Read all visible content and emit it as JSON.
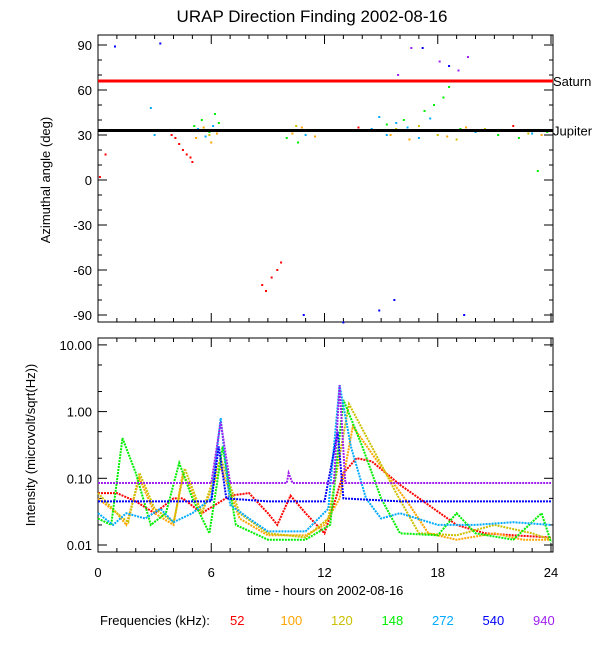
{
  "chart_data": [
    {
      "type": "scatter",
      "title": "URAP Direction Finding  2002-08-16",
      "ylabel": "Azimuthal angle (deg)",
      "xlim": [
        0,
        24
      ],
      "ylim": [
        -95,
        95
      ],
      "yticks": [
        90,
        60,
        30,
        0,
        -30,
        -60,
        -90
      ],
      "reference_lines": [
        {
          "label": "Saturn",
          "value": 66,
          "color": "#ff0000"
        },
        {
          "label": "Jupiter",
          "value": 33,
          "color": "#000000"
        }
      ],
      "series": [
        {
          "name": "52",
          "color": "#ff0000",
          "points": [
            [
              0.1,
              2
            ],
            [
              0.4,
              17
            ],
            [
              3.9,
              30
            ],
            [
              4.1,
              28
            ],
            [
              4.3,
              24
            ],
            [
              4.5,
              20
            ],
            [
              4.7,
              17
            ],
            [
              4.9,
              15
            ],
            [
              5.0,
              12
            ],
            [
              8.7,
              -70
            ],
            [
              8.9,
              -74
            ],
            [
              9.2,
              -65
            ],
            [
              9.5,
              -60
            ],
            [
              9.7,
              -55
            ],
            [
              13.8,
              35
            ],
            [
              22.0,
              36
            ]
          ]
        },
        {
          "name": "100",
          "color": "#ffa500",
          "points": [
            [
              5.2,
              28
            ],
            [
              5.6,
              35
            ],
            [
              6.0,
              25
            ],
            [
              6.3,
              31
            ],
            [
              10.3,
              31
            ],
            [
              10.8,
              35
            ],
            [
              11.5,
              29
            ],
            [
              15.5,
              30
            ],
            [
              16.5,
              27
            ],
            [
              17.5,
              33
            ],
            [
              18.5,
              29
            ],
            [
              19.5,
              35
            ],
            [
              22.5,
              33
            ],
            [
              23.5,
              30
            ]
          ]
        },
        {
          "name": "120",
          "color": "#ccc000",
          "points": [
            [
              5.4,
              33
            ],
            [
              5.9,
              30
            ],
            [
              10.5,
              36
            ],
            [
              11.2,
              33
            ],
            [
              15.8,
              34
            ],
            [
              17.0,
              36
            ],
            [
              18.0,
              30
            ],
            [
              19.0,
              27
            ],
            [
              20.5,
              34
            ],
            [
              22.8,
              31
            ]
          ]
        },
        {
          "name": "148",
          "color": "#00ee00",
          "points": [
            [
              5.1,
              36
            ],
            [
              5.5,
              40
            ],
            [
              5.9,
              32
            ],
            [
              6.2,
              44
            ],
            [
              6.4,
              38
            ],
            [
              10.0,
              28
            ],
            [
              10.6,
              25
            ],
            [
              11.6,
              33
            ],
            [
              15.3,
              37
            ],
            [
              16.2,
              40
            ],
            [
              17.3,
              46
            ],
            [
              17.8,
              50
            ],
            [
              18.3,
              55
            ],
            [
              18.6,
              62
            ],
            [
              19.2,
              34
            ],
            [
              21.2,
              30
            ],
            [
              22.3,
              28
            ],
            [
              23.3,
              6
            ],
            [
              23.8,
              32
            ]
          ]
        },
        {
          "name": "272",
          "color": "#00aaff",
          "points": [
            [
              3.0,
              30
            ],
            [
              2.8,
              48
            ],
            [
              5.3,
              34
            ],
            [
              5.7,
              29
            ],
            [
              6.1,
              36
            ],
            [
              10.2,
              33
            ],
            [
              11.0,
              30
            ],
            [
              14.5,
              34
            ],
            [
              14.9,
              42
            ],
            [
              15.3,
              30
            ],
            [
              15.8,
              38
            ],
            [
              16.4,
              35
            ],
            [
              17.0,
              28
            ],
            [
              17.6,
              41
            ],
            [
              18.2,
              33
            ],
            [
              20.0,
              32
            ],
            [
              23.0,
              31
            ]
          ]
        },
        {
          "name": "540",
          "color": "#0000ff",
          "points": [
            [
              0.9,
              89
            ],
            [
              3.3,
              91
            ],
            [
              10.9,
              -90
            ],
            [
              13.0,
              -95
            ],
            [
              14.9,
              -87
            ],
            [
              15.7,
              -80
            ],
            [
              19.4,
              -90
            ],
            [
              17.2,
              88
            ],
            [
              18.6,
              76
            ]
          ]
        },
        {
          "name": "940",
          "color": "#a020f0",
          "points": [
            [
              16.6,
              88
            ],
            [
              18.1,
              79
            ],
            [
              19.1,
              73
            ],
            [
              19.6,
              82
            ],
            [
              15.9,
              70
            ]
          ]
        }
      ]
    },
    {
      "type": "line",
      "xlabel": "time - hours on 2002-08-16",
      "ylabel": "Intensity (microvolt/sqrt(Hz))",
      "xlim": [
        0,
        24
      ],
      "ylim": [
        0.01,
        10
      ],
      "yscale": "log",
      "xticks": [
        0,
        6,
        12,
        18,
        24
      ],
      "yticks": [
        "10.00",
        "1.00",
        "0.10",
        "0.01"
      ],
      "series": [
        {
          "name": "52",
          "color": "#ff0000",
          "points": [
            [
              0,
              0.06
            ],
            [
              1,
              0.06
            ],
            [
              2,
              0.045
            ],
            [
              3,
              0.03
            ],
            [
              4,
              0.05
            ],
            [
              4.5,
              0.05
            ],
            [
              5.5,
              0.03
            ],
            [
              7,
              0.055
            ],
            [
              8,
              0.06
            ],
            [
              9,
              0.03
            ],
            [
              9.5,
              0.02
            ],
            [
              10.2,
              0.055
            ],
            [
              11,
              0.03
            ],
            [
              12,
              0.015
            ],
            [
              12.6,
              0.05
            ],
            [
              13,
              0.12
            ],
            [
              13.7,
              0.2
            ],
            [
              14.5,
              0.18
            ],
            [
              16,
              0.08
            ],
            [
              17.5,
              0.04
            ],
            [
              19,
              0.02
            ],
            [
              20.5,
              0.015
            ],
            [
              22,
              0.014
            ],
            [
              24,
              0.013
            ]
          ]
        },
        {
          "name": "100",
          "color": "#ffa500",
          "points": [
            [
              0,
              0.05
            ],
            [
              1,
              0.03
            ],
            [
              1.5,
              0.02
            ],
            [
              2.2,
              0.1
            ],
            [
              3,
              0.03
            ],
            [
              4,
              0.02
            ],
            [
              4.5,
              0.12
            ],
            [
              5.5,
              0.03
            ],
            [
              6.5,
              0.15
            ],
            [
              7.5,
              0.025
            ],
            [
              9,
              0.014
            ],
            [
              11,
              0.014
            ],
            [
              12,
              0.02
            ],
            [
              12.8,
              0.05
            ],
            [
              13.5,
              0.6
            ],
            [
              15,
              0.15
            ],
            [
              16.5,
              0.04
            ],
            [
              17.5,
              0.015
            ],
            [
              19,
              0.012
            ],
            [
              21,
              0.015
            ],
            [
              22.5,
              0.012
            ],
            [
              24,
              0.012
            ]
          ]
        },
        {
          "name": "120",
          "color": "#ccc000",
          "points": [
            [
              0,
              0.06
            ],
            [
              1,
              0.03
            ],
            [
              1.6,
              0.022
            ],
            [
              2.2,
              0.12
            ],
            [
              3,
              0.035
            ],
            [
              4,
              0.022
            ],
            [
              4.6,
              0.14
            ],
            [
              5.5,
              0.03
            ],
            [
              6.5,
              0.2
            ],
            [
              7.5,
              0.03
            ],
            [
              9,
              0.015
            ],
            [
              11,
              0.013
            ],
            [
              12.2,
              0.025
            ],
            [
              13.3,
              1.3
            ],
            [
              14.5,
              0.3
            ],
            [
              15.8,
              0.06
            ],
            [
              17,
              0.015
            ],
            [
              19,
              0.014
            ],
            [
              21,
              0.02
            ],
            [
              23,
              0.015
            ],
            [
              24,
              0.012
            ]
          ]
        },
        {
          "name": "148",
          "color": "#00ee00",
          "points": [
            [
              0,
              0.025
            ],
            [
              0.7,
              0.02
            ],
            [
              1.3,
              0.4
            ],
            [
              2,
              0.12
            ],
            [
              2.8,
              0.02
            ],
            [
              3.6,
              0.03
            ],
            [
              4.3,
              0.17
            ],
            [
              5,
              0.05
            ],
            [
              5.9,
              0.015
            ],
            [
              6.6,
              0.3
            ],
            [
              7.3,
              0.02
            ],
            [
              9,
              0.012
            ],
            [
              11,
              0.012
            ],
            [
              12.3,
              0.02
            ],
            [
              13,
              1.5
            ],
            [
              14,
              0.3
            ],
            [
              15,
              0.05
            ],
            [
              16,
              0.015
            ],
            [
              18,
              0.014
            ],
            [
              19,
              0.03
            ],
            [
              20,
              0.015
            ],
            [
              22,
              0.012
            ],
            [
              23.5,
              0.03
            ],
            [
              24,
              0.011
            ]
          ]
        },
        {
          "name": "272",
          "color": "#00aaff",
          "points": [
            [
              0,
              0.03
            ],
            [
              0.8,
              0.02
            ],
            [
              1.5,
              0.03
            ],
            [
              2.5,
              0.025
            ],
            [
              3.3,
              0.035
            ],
            [
              4,
              0.022
            ],
            [
              5,
              0.03
            ],
            [
              6,
              0.05
            ],
            [
              6.5,
              0.8
            ],
            [
              7,
              0.04
            ],
            [
              8,
              0.025
            ],
            [
              9,
              0.016
            ],
            [
              11,
              0.016
            ],
            [
              12.2,
              0.035
            ],
            [
              12.8,
              2.5
            ],
            [
              13.4,
              0.3
            ],
            [
              14.2,
              0.05
            ],
            [
              15,
              0.025
            ],
            [
              16,
              0.03
            ],
            [
              18,
              0.02
            ],
            [
              20,
              0.02
            ],
            [
              22,
              0.022
            ],
            [
              24,
              0.02
            ]
          ]
        },
        {
          "name": "540",
          "color": "#0000ff",
          "points": [
            [
              0,
              0.045
            ],
            [
              3,
              0.045
            ],
            [
              6,
              0.045
            ],
            [
              6.4,
              0.3
            ],
            [
              6.8,
              0.05
            ],
            [
              9,
              0.045
            ],
            [
              12,
              0.045
            ],
            [
              12.7,
              0.5
            ],
            [
              13,
              0.05
            ],
            [
              16,
              0.045
            ],
            [
              20,
              0.045
            ],
            [
              24,
              0.045
            ]
          ]
        },
        {
          "name": "940",
          "color": "#a020f0",
          "points": [
            [
              0,
              0.085
            ],
            [
              6,
              0.085
            ],
            [
              6.5,
              0.7
            ],
            [
              7,
              0.085
            ],
            [
              10,
              0.085
            ],
            [
              10.1,
              0.12
            ],
            [
              10.3,
              0.085
            ],
            [
              12.5,
              0.085
            ],
            [
              12.8,
              2.5
            ],
            [
              13.1,
              0.085
            ],
            [
              18,
              0.085
            ],
            [
              24,
              0.085
            ]
          ]
        }
      ]
    }
  ],
  "legend": {
    "label": "Frequencies (kHz):",
    "items": [
      {
        "label": "52",
        "color": "#ff0000"
      },
      {
        "label": "100",
        "color": "#ffa500"
      },
      {
        "label": "120",
        "color": "#ccc000"
      },
      {
        "label": "148",
        "color": "#00ee00"
      },
      {
        "label": "272",
        "color": "#00aaff"
      },
      {
        "label": "540",
        "color": "#0000ff"
      },
      {
        "label": "940",
        "color": "#a020f0"
      }
    ]
  }
}
